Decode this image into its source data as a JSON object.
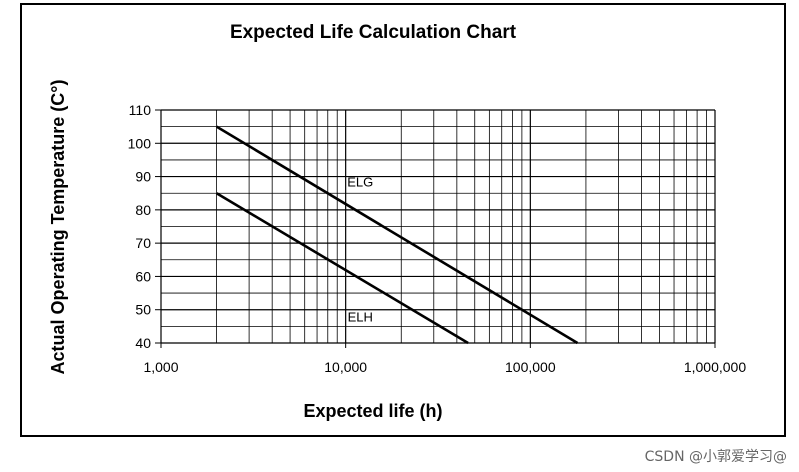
{
  "chart_data": {
    "type": "line",
    "title": "Expected Life Calculation Chart",
    "xlabel": "Expected life (h)",
    "ylabel": "Actual Operating Temperature (C°)",
    "xscale": "log",
    "xlim": [
      1000,
      1000000
    ],
    "ylim": [
      40,
      110
    ],
    "xticks": [
      1000,
      10000,
      100000,
      1000000
    ],
    "xtick_labels": [
      "1,000",
      "10,000",
      "100,000",
      "1,000,000"
    ],
    "yticks": [
      40,
      50,
      60,
      70,
      80,
      90,
      100,
      110
    ],
    "ytick_labels": [
      "40",
      "50",
      "60",
      "70",
      "80",
      "90",
      "100",
      "110"
    ],
    "grid": true,
    "line_color": "#000000",
    "series": [
      {
        "name": "ELG",
        "x": [
          2000,
          180000
        ],
        "y": [
          105,
          40
        ]
      },
      {
        "name": "ELH",
        "x": [
          2000,
          46000
        ],
        "y": [
          85,
          40
        ]
      }
    ]
  },
  "watermark": "CSDN @小郭爱学习@"
}
